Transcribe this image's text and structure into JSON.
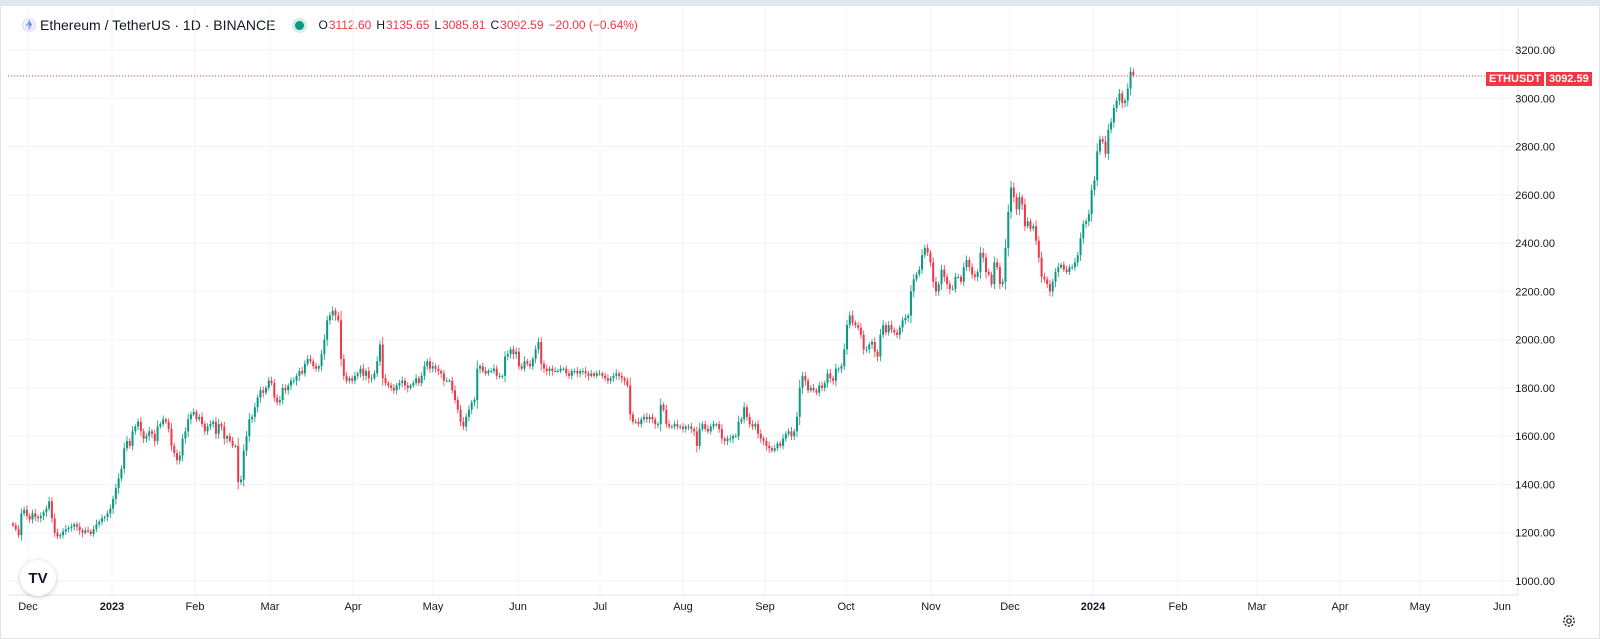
{
  "header": {
    "symbol": "Ethereum / TetherUS · 1D · BINANCE",
    "o_label": "O",
    "o_value": "3112.60",
    "h_label": "H",
    "h_value": "3135.65",
    "l_label": "L",
    "l_value": "3085.81",
    "c_label": "C",
    "c_value": "3092.59",
    "change": "−20.00 (−0.64%)"
  },
  "price_tag": {
    "name": "ETHUSDT",
    "value": "3092.59"
  },
  "logo_text": "TV",
  "colors": {
    "up": "#089981",
    "down": "#f23645",
    "grid": "#f0f3fa",
    "axis_text": "#131722"
  },
  "chart_data": {
    "type": "candlestick",
    "series": "ETH/USDT daily",
    "y_ticks": [
      "1000.00",
      "1200.00",
      "1400.00",
      "1600.00",
      "1800.00",
      "2000.00",
      "2200.00",
      "2400.00",
      "2600.00",
      "2800.00",
      "3000.00",
      "3200.00"
    ],
    "ylim": [
      950,
      3280
    ],
    "x_ticks": [
      "Dec",
      "2023",
      "Feb",
      "Mar",
      "Apr",
      "May",
      "Jun",
      "Jul",
      "Aug",
      "Sep",
      "Oct",
      "Nov",
      "Dec",
      "2024",
      "Feb",
      "Mar",
      "Apr",
      "May",
      "Jun"
    ],
    "last_price": 3092.59,
    "closes": [
      1230,
      1215,
      1190,
      1280,
      1295,
      1270,
      1255,
      1280,
      1265,
      1260,
      1270,
      1285,
      1300,
      1330,
      1260,
      1200,
      1185,
      1190,
      1205,
      1215,
      1220,
      1225,
      1235,
      1225,
      1210,
      1200,
      1210,
      1205,
      1195,
      1215,
      1235,
      1245,
      1260,
      1265,
      1280,
      1300,
      1340,
      1385,
      1425,
      1465,
      1550,
      1580,
      1560,
      1620,
      1640,
      1660,
      1620,
      1590,
      1600,
      1620,
      1610,
      1580,
      1640,
      1650,
      1670,
      1660,
      1630,
      1560,
      1530,
      1500,
      1520,
      1590,
      1620,
      1670,
      1690,
      1700,
      1670,
      1680,
      1650,
      1620,
      1640,
      1650,
      1660,
      1610,
      1650,
      1640,
      1590,
      1600,
      1580,
      1560,
      1560,
      1410,
      1420,
      1540,
      1600,
      1670,
      1680,
      1720,
      1760,
      1790,
      1780,
      1800,
      1830,
      1820,
      1760,
      1740,
      1750,
      1800,
      1790,
      1810,
      1830,
      1830,
      1850,
      1870,
      1860,
      1900,
      1920,
      1910,
      1890,
      1880,
      1890,
      1940,
      2000,
      2080,
      2100,
      2120,
      2100,
      2080,
      1920,
      1850,
      1830,
      1840,
      1830,
      1850,
      1860,
      1880,
      1850,
      1870,
      1840,
      1840,
      1860,
      1910,
      1980,
      1840,
      1820,
      1810,
      1800,
      1790,
      1810,
      1820,
      1830,
      1810,
      1800,
      1810,
      1820,
      1840,
      1820,
      1850,
      1890,
      1910,
      1880,
      1890,
      1880,
      1870,
      1860,
      1830,
      1830,
      1830,
      1790,
      1750,
      1710,
      1660,
      1640,
      1680,
      1710,
      1740,
      1750,
      1880,
      1890,
      1870,
      1860,
      1870,
      1870,
      1880,
      1850,
      1850,
      1850,
      1930,
      1940,
      1960,
      1940,
      1950,
      1890,
      1880,
      1910,
      1900,
      1890,
      1920,
      1960,
      1990,
      1900,
      1880,
      1870,
      1880,
      1870,
      1870,
      1870,
      1880,
      1880,
      1860,
      1850,
      1870,
      1870,
      1860,
      1870,
      1870,
      1860,
      1850,
      1860,
      1850,
      1860,
      1860,
      1850,
      1840,
      1830,
      1840,
      1850,
      1860,
      1850,
      1840,
      1830,
      1810,
      1690,
      1660,
      1660,
      1650,
      1670,
      1680,
      1670,
      1680,
      1670,
      1650,
      1650,
      1730,
      1710,
      1650,
      1640,
      1640,
      1650,
      1640,
      1640,
      1630,
      1640,
      1640,
      1630,
      1620,
      1560,
      1630,
      1650,
      1630,
      1620,
      1640,
      1650,
      1650,
      1630,
      1590,
      1580,
      1590,
      1590,
      1600,
      1600,
      1660,
      1670,
      1720,
      1680,
      1650,
      1640,
      1650,
      1610,
      1590,
      1580,
      1560,
      1550,
      1540,
      1550,
      1570,
      1560,
      1590,
      1610,
      1620,
      1600,
      1620,
      1680,
      1800,
      1850,
      1830,
      1790,
      1800,
      1790,
      1780,
      1810,
      1800,
      1820,
      1860,
      1840,
      1830,
      1880,
      1880,
      1890,
      1960,
      2060,
      2100,
      2070,
      2060,
      2050,
      2020,
      1960,
      1960,
      1980,
      1990,
      1950,
      1930,
      2020,
      2060,
      2030,
      2060,
      2040,
      2030,
      2020,
      2050,
      2080,
      2090,
      2100,
      2200,
      2250,
      2270,
      2290,
      2350,
      2380,
      2360,
      2320,
      2240,
      2200,
      2230,
      2290,
      2260,
      2230,
      2210,
      2210,
      2260,
      2260,
      2240,
      2300,
      2330,
      2300,
      2270,
      2260,
      2280,
      2360,
      2340,
      2280,
      2270,
      2230,
      2320,
      2300,
      2230,
      2240,
      2380,
      2530,
      2630,
      2590,
      2540,
      2590,
      2560,
      2470,
      2490,
      2460,
      2470,
      2410,
      2340,
      2260,
      2250,
      2230,
      2200,
      2240,
      2280,
      2300,
      2310,
      2290,
      2280,
      2300,
      2300,
      2320,
      2350,
      2420,
      2480,
      2490,
      2520,
      2620,
      2660,
      2780,
      2830,
      2820,
      2770,
      2870,
      2900,
      2960,
      2990,
      3020,
      2980,
      2990,
      3040,
      3110,
      3095
    ]
  }
}
